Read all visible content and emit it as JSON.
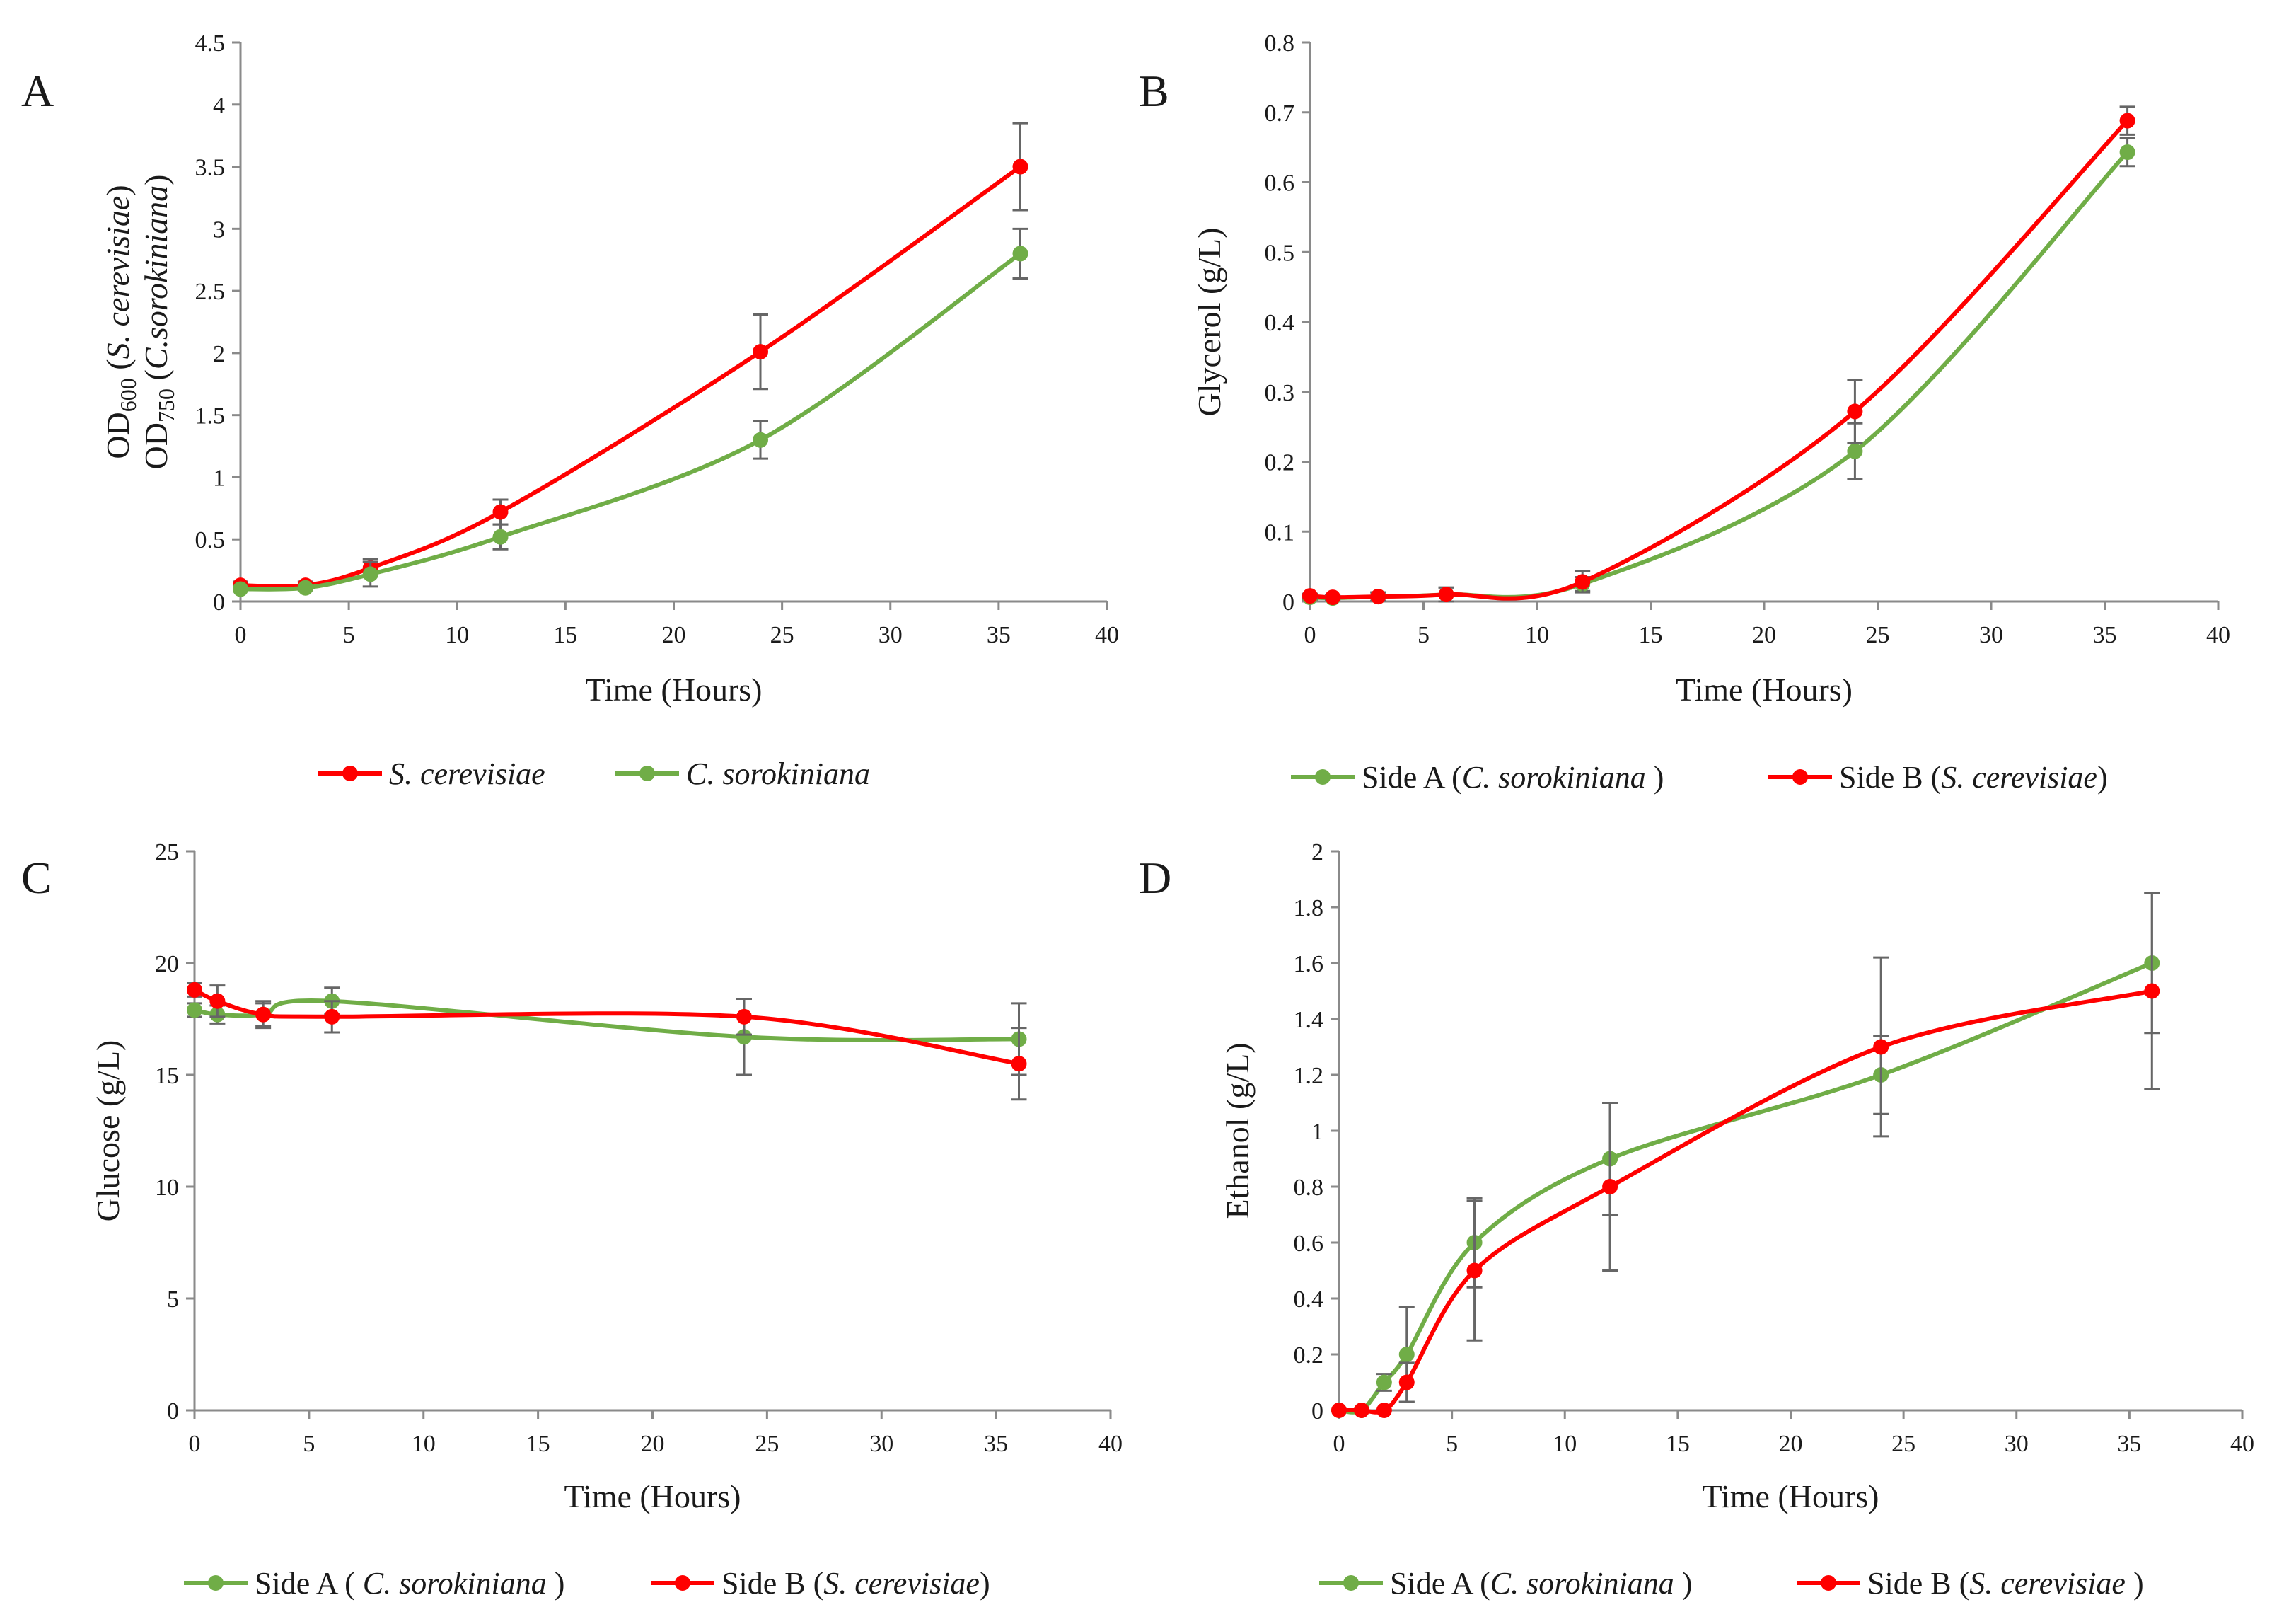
{
  "colors": {
    "red": "#ff0000",
    "green": "#70ad47",
    "axis": "#8a8a8a",
    "error": "#666666"
  },
  "chart_data": [
    {
      "panel": "A",
      "type": "line",
      "xlabel": "Time (Hours)",
      "ylabel_top": {
        "base": "OD",
        "sub": "600",
        "rest": " (",
        "italic": "S. cerevisiae",
        "end": ")"
      },
      "ylabel_bottom": {
        "base": "OD",
        "sub": "750",
        "rest": " (",
        "italic": "C.sorokiniana",
        "end": ")"
      },
      "xlim": [
        0,
        40
      ],
      "xstep": 5,
      "ylim": [
        0,
        4.5
      ],
      "ystep": 0.5,
      "ytick_labels": [
        "0",
        "0.5",
        "1",
        "1.5",
        "2",
        "2.5",
        "3",
        "3.5",
        "4",
        "4.5"
      ],
      "xtick_labels": [
        "0",
        "5",
        "10",
        "15",
        "20",
        "25",
        "30",
        "35",
        "40"
      ],
      "series": [
        {
          "name": "S. cerevisiae",
          "legend_italic": "S. cerevisiae",
          "color": "#ff0000",
          "x": [
            0,
            3,
            6,
            12,
            24,
            36
          ],
          "y": [
            0.13,
            0.13,
            0.27,
            0.72,
            2.01,
            3.5
          ],
          "err": [
            0.03,
            0.03,
            0.07,
            0.1,
            0.3,
            0.35
          ]
        },
        {
          "name": "C. sorokiniana",
          "legend_italic": "C. sorokiniana",
          "color": "#70ad47",
          "x": [
            0,
            3,
            6,
            12,
            24,
            36
          ],
          "y": [
            0.1,
            0.11,
            0.22,
            0.52,
            1.3,
            2.8
          ],
          "err": [
            0.02,
            0.02,
            0.1,
            0.1,
            0.15,
            0.2
          ]
        }
      ],
      "legend_order": [
        0,
        1
      ]
    },
    {
      "panel": "B",
      "type": "line",
      "xlabel": "Time (Hours)",
      "ylabel": "Glycerol (g/L)",
      "xlim": [
        0,
        40
      ],
      "xstep": 5,
      "ylim": [
        0,
        0.8
      ],
      "ystep": 0.1,
      "ytick_labels": [
        "0",
        "0.1",
        "0.2",
        "0.3",
        "0.4",
        "0.5",
        "0.6",
        "0.7",
        "0.8"
      ],
      "xtick_labels": [
        "0",
        "5",
        "10",
        "15",
        "20",
        "25",
        "30",
        "35",
        "40"
      ],
      "series": [
        {
          "name": "Side A (C. sorokiniana)",
          "legend_plain": "Side A (",
          "legend_italic": "C. sorokiniana",
          "legend_end": " )",
          "color": "#70ad47",
          "x": [
            0,
            1,
            3,
            6,
            12,
            24,
            36
          ],
          "y": [
            0.006,
            0.005,
            0.007,
            0.01,
            0.025,
            0.215,
            0.643
          ],
          "err": [
            0.003,
            0.003,
            0.006,
            0.01,
            0.01,
            0.04,
            0.02
          ]
        },
        {
          "name": "Side B (S. cerevisiae)",
          "legend_plain": "Side B (",
          "legend_italic": "S. cerevisiae",
          "legend_end": ")",
          "color": "#ff0000",
          "x": [
            0,
            1,
            3,
            6,
            12,
            24,
            36
          ],
          "y": [
            0.008,
            0.006,
            0.007,
            0.01,
            0.028,
            0.272,
            0.688
          ],
          "err": [
            0.003,
            0.003,
            0.006,
            0.01,
            0.015,
            0.045,
            0.02
          ]
        }
      ],
      "legend_order": [
        0,
        1
      ]
    },
    {
      "panel": "C",
      "type": "line",
      "xlabel": "Time (Hours)",
      "ylabel": "Glucose (g/L)",
      "xlim": [
        0,
        40
      ],
      "xstep": 5,
      "ylim": [
        0,
        25
      ],
      "ystep": 5,
      "ytick_labels": [
        "0",
        "5",
        "10",
        "15",
        "20",
        "25"
      ],
      "xtick_labels": [
        "0",
        "5",
        "10",
        "15",
        "20",
        "25",
        "30",
        "35",
        "40"
      ],
      "series": [
        {
          "name": "Side A (C. sorokiniana)",
          "legend_plain": "Side A ( ",
          "legend_italic": "C. sorokiniana",
          "legend_end": " )",
          "color": "#70ad47",
          "x": [
            0,
            1,
            3,
            6,
            24,
            36
          ],
          "y": [
            17.9,
            17.7,
            17.7,
            18.3,
            16.7,
            16.6
          ],
          "err": [
            0.3,
            0.4,
            0.6,
            0.6,
            1.7,
            1.6
          ]
        },
        {
          "name": "Side B (S. cerevisiae)",
          "legend_plain": "Side B (",
          "legend_italic": "S. cerevisiae",
          "legend_end": ")",
          "color": "#ff0000",
          "x": [
            0,
            1,
            3,
            6,
            24,
            36
          ],
          "y": [
            18.8,
            18.3,
            17.7,
            17.6,
            17.6,
            15.5
          ],
          "err": [
            0.3,
            0.7,
            0.5,
            0.7,
            0.8,
            1.6
          ]
        }
      ],
      "legend_order": [
        0,
        1
      ]
    },
    {
      "panel": "D",
      "type": "line",
      "xlabel": "Time (Hours)",
      "ylabel": "Ethanol (g/L)",
      "xlim": [
        0,
        40
      ],
      "xstep": 5,
      "ylim": [
        0,
        2
      ],
      "ystep": 0.2,
      "ytick_labels": [
        "0",
        "0.2",
        "0.4",
        "0.6",
        "0.8",
        "1",
        "1.2",
        "1.4",
        "1.6",
        "1.8",
        "2"
      ],
      "xtick_labels": [
        "0",
        "5",
        "10",
        "15",
        "20",
        "25",
        "30",
        "35",
        "40"
      ],
      "series": [
        {
          "name": "Side A (C. sorokiniana)",
          "legend_plain": "Side A (",
          "legend_italic": "C. sorokiniana",
          "legend_end": " )",
          "color": "#70ad47",
          "x": [
            0,
            1,
            2,
            3,
            6,
            12,
            24,
            36
          ],
          "y": [
            0,
            0,
            0.1,
            0.2,
            0.6,
            0.9,
            1.2,
            1.6
          ],
          "err": [
            0,
            0,
            0.03,
            0.17,
            0.16,
            0.2,
            0.14,
            0.25
          ]
        },
        {
          "name": "Side B (S. cerevisiae)",
          "legend_plain": "Side B (",
          "legend_italic": "S. cerevisiae",
          "legend_end": " )",
          "color": "#ff0000",
          "x": [
            0,
            1,
            2,
            3,
            6,
            12,
            24,
            36
          ],
          "y": [
            0,
            0,
            0,
            0.1,
            0.5,
            0.8,
            1.3,
            1.5
          ],
          "err": [
            0,
            0,
            0,
            0.07,
            0.25,
            0.3,
            0.32,
            0.35
          ]
        }
      ],
      "legend_order": [
        0,
        1
      ]
    }
  ]
}
